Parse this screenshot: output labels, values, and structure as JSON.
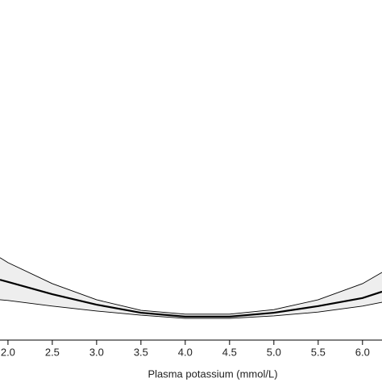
{
  "chart_data": {
    "type": "line",
    "x_label": "Plasma potassium (mmol/L)",
    "x": [
      1.91,
      2.0,
      2.5,
      3.0,
      3.5,
      4.0,
      4.5,
      5.0,
      5.5,
      6.0,
      6.22
    ],
    "series": [
      {
        "color": "#000000",
        "values": [
          2.02,
          1.96,
          1.61,
          1.31,
          1.08,
          0.97,
          0.97,
          1.08,
          1.27,
          1.5,
          1.68
        ]
      },
      {
        "color": "#000000",
        "values": [
          2.65,
          2.51,
          1.91,
          1.45,
          1.15,
          1.04,
          1.04,
          1.17,
          1.45,
          1.91,
          2.23
        ]
      },
      {
        "color": "#000000",
        "values": [
          1.45,
          1.43,
          1.27,
          1.13,
          1.01,
          0.92,
          0.92,
          0.99,
          1.1,
          1.27,
          1.38
        ]
      }
    ],
    "band_color": "#eeeeee",
    "xlim": [
      1.91,
      6.22
    ],
    "ylim": [
      0.3,
      10
    ],
    "xticks": [
      {
        "value": 2,
        "label": "2.0"
      },
      2.5,
      {
        "value": 3,
        "label": "3.0"
      },
      3.5,
      {
        "value": 4,
        "label": "4.0"
      },
      4.5,
      {
        "value": 5,
        "label": "5.0"
      },
      5.5,
      {
        "value": 6,
        "label": "6.0"
      }
    ]
  }
}
